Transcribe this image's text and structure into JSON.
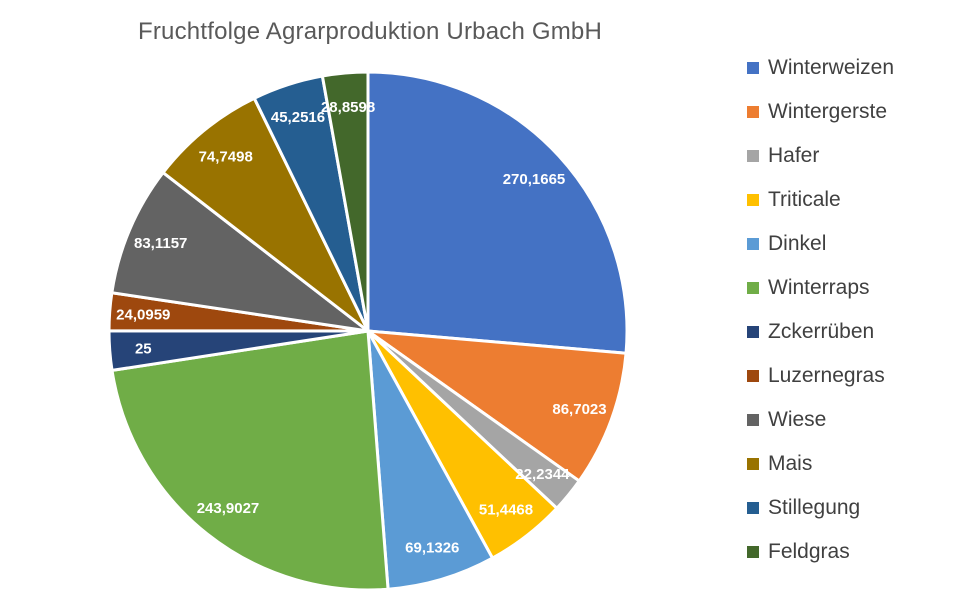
{
  "colors": {
    "background": "#ffffff",
    "title_text": "#595959",
    "legend_text": "#404040",
    "slice_border": "#ffffff",
    "slice_label_text": "#ffffff"
  },
  "chart_data": {
    "type": "pie",
    "title": "Fruchtfolge Agrarproduktion Urbach GmbH",
    "categories": [
      "Winterweizen",
      "Wintergerste",
      "Hafer",
      "Triticale",
      "Dinkel",
      "Winterraps",
      "Zckerrüben",
      "Luzernegras",
      "Wiese",
      "Mais",
      "Stillegung",
      "Feldgras"
    ],
    "values": [
      270.1665,
      86.7023,
      22.2344,
      51.4468,
      69.1326,
      243.9027,
      25,
      24.0959,
      83.1157,
      74.7498,
      45.2516,
      28.8598
    ],
    "value_labels": [
      "270,1665",
      "86,7023",
      "22,2344",
      "51,4468",
      "69,1326",
      "243,9027",
      "25",
      "24,0959",
      "83,1157",
      "74,7498",
      "45,2516",
      "28,8598"
    ],
    "slice_colors": [
      "#4472C4",
      "#ED7D31",
      "#A5A5A5",
      "#FFC000",
      "#5B9BD5",
      "#70AD47",
      "#264478",
      "#9E480E",
      "#636363",
      "#997300",
      "#255E91",
      "#43682B"
    ],
    "total": 1024.6581,
    "start_angle_deg": 0,
    "direction": "clockwise",
    "legend_position": "right",
    "data_labels": "inside"
  }
}
